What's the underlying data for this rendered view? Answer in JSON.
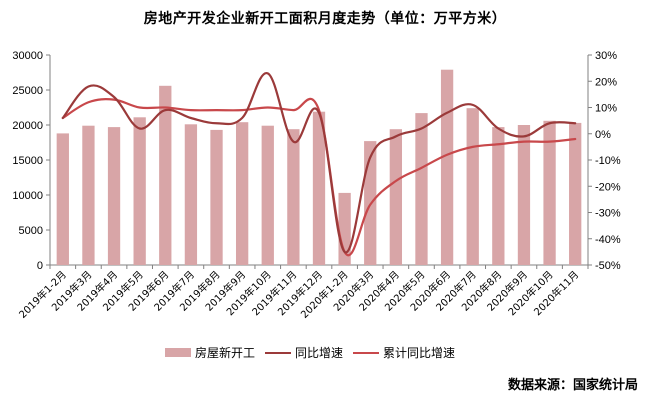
{
  "title": "房地产开发企业新开工面积月度走势（单位：万平方米）",
  "source": "数据来源：国家统计局",
  "legend": {
    "bar": "房屋新开工",
    "yoy": "同比增速",
    "cum_yoy": "累计同比增速"
  },
  "colors": {
    "bar": "#d8a5a7",
    "yoy": "#9b3a3a",
    "cum_yoy": "#c8484b",
    "axis": "#808080"
  },
  "chart_data": {
    "type": "bar+line",
    "title": "房地产开发企业新开工面积月度走势（单位：万平方米）",
    "xlabel": "",
    "ylabel": "",
    "y_left": {
      "min": 0,
      "max": 30000,
      "ticks": [
        0,
        5000,
        10000,
        15000,
        20000,
        25000,
        30000
      ]
    },
    "y_right": {
      "min": -50,
      "max": 30,
      "ticks": [
        "-50%",
        "-40%",
        "-30%",
        "-20%",
        "-10%",
        "0%",
        "10%",
        "20%",
        "30%"
      ]
    },
    "categories": [
      "2019年1-2月",
      "2019年3月",
      "2019年4月",
      "2019年5月",
      "2019年6月",
      "2019年7月",
      "2019年8月",
      "2019年9月",
      "2019年10月",
      "2019年11月",
      "2019年12月",
      "2020年1-2月",
      "2020年3月",
      "2020年4月",
      "2020年5月",
      "2020年6月",
      "2020年7月",
      "2020年8月",
      "2020年9月",
      "2020年10月",
      "2020年11月"
    ],
    "series": [
      {
        "name": "房屋新开工",
        "type": "bar",
        "axis": "left",
        "values": [
          18800,
          19900,
          19700,
          21100,
          25600,
          20100,
          19300,
          20400,
          19900,
          19400,
          21900,
          10300,
          17700,
          19400,
          21700,
          27900,
          22400,
          19700,
          20000,
          20600,
          20300
        ]
      },
      {
        "name": "同比增速",
        "type": "line",
        "axis": "right",
        "values": [
          6,
          18,
          14,
          2,
          9,
          6,
          4,
          6,
          23,
          -3,
          8,
          -45,
          -9,
          -1,
          2,
          8,
          11,
          2,
          -1,
          4,
          4
        ]
      },
      {
        "name": "累计同比增速",
        "type": "line",
        "axis": "right",
        "values": [
          6,
          12,
          13,
          10,
          10,
          9,
          9,
          9,
          10,
          9,
          9,
          -45,
          -27,
          -18,
          -13,
          -8,
          -5,
          -4,
          -3,
          -3,
          -2
        ]
      }
    ],
    "legend_position": "bottom",
    "grid": false
  }
}
